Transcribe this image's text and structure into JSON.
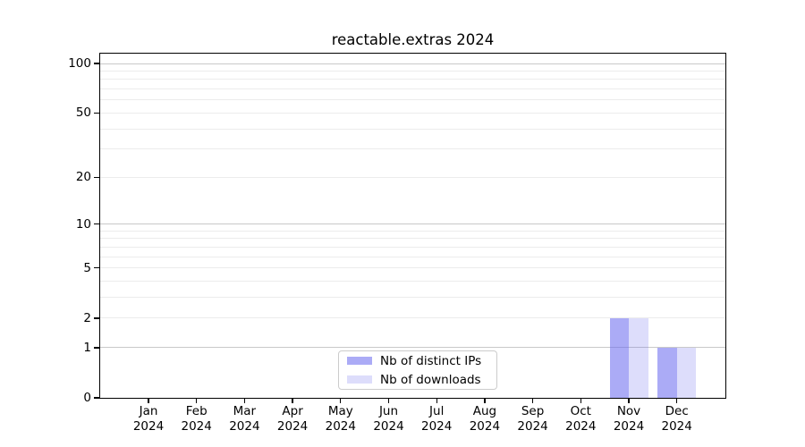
{
  "figure": {
    "background": "#ffffff"
  },
  "chart_data": {
    "type": "bar",
    "title": "reactable.extras 2024",
    "categories": [
      "Jan 2024",
      "Feb 2024",
      "Mar 2024",
      "Apr 2024",
      "May 2024",
      "Jun 2024",
      "Jul 2024",
      "Aug 2024",
      "Sep 2024",
      "Oct 2024",
      "Nov 2024",
      "Dec 2024"
    ],
    "series": [
      {
        "name": "Nb of distinct IPs",
        "color": "rgba(102,102,238,0.55)",
        "values": [
          0,
          0,
          0,
          0,
          0,
          0,
          0,
          0,
          0,
          0,
          2,
          1
        ]
      },
      {
        "name": "Nb of downloads",
        "color": "rgba(102,102,238,0.22)",
        "values": [
          0,
          0,
          0,
          0,
          0,
          0,
          0,
          0,
          0,
          0,
          2,
          1
        ]
      }
    ],
    "xlabel": "",
    "ylabel": "",
    "yscale": "log1p",
    "ylim": [
      0,
      115
    ],
    "y_ticks": [
      0,
      1,
      2,
      5,
      10,
      20,
      50,
      100
    ],
    "y_major_gridlines": [
      1,
      10,
      100
    ],
    "y_minor_gridlines": [
      2,
      3,
      4,
      5,
      6,
      7,
      8,
      9,
      20,
      30,
      40,
      50,
      60,
      70,
      80,
      90
    ],
    "grid": true,
    "legend_position": "lower center",
    "colors": {
      "grid_major": "#c9c9c9",
      "grid_minor": "#ececec",
      "spine": "#000000",
      "legend_border": "#cccccc",
      "text": "#000000"
    }
  }
}
